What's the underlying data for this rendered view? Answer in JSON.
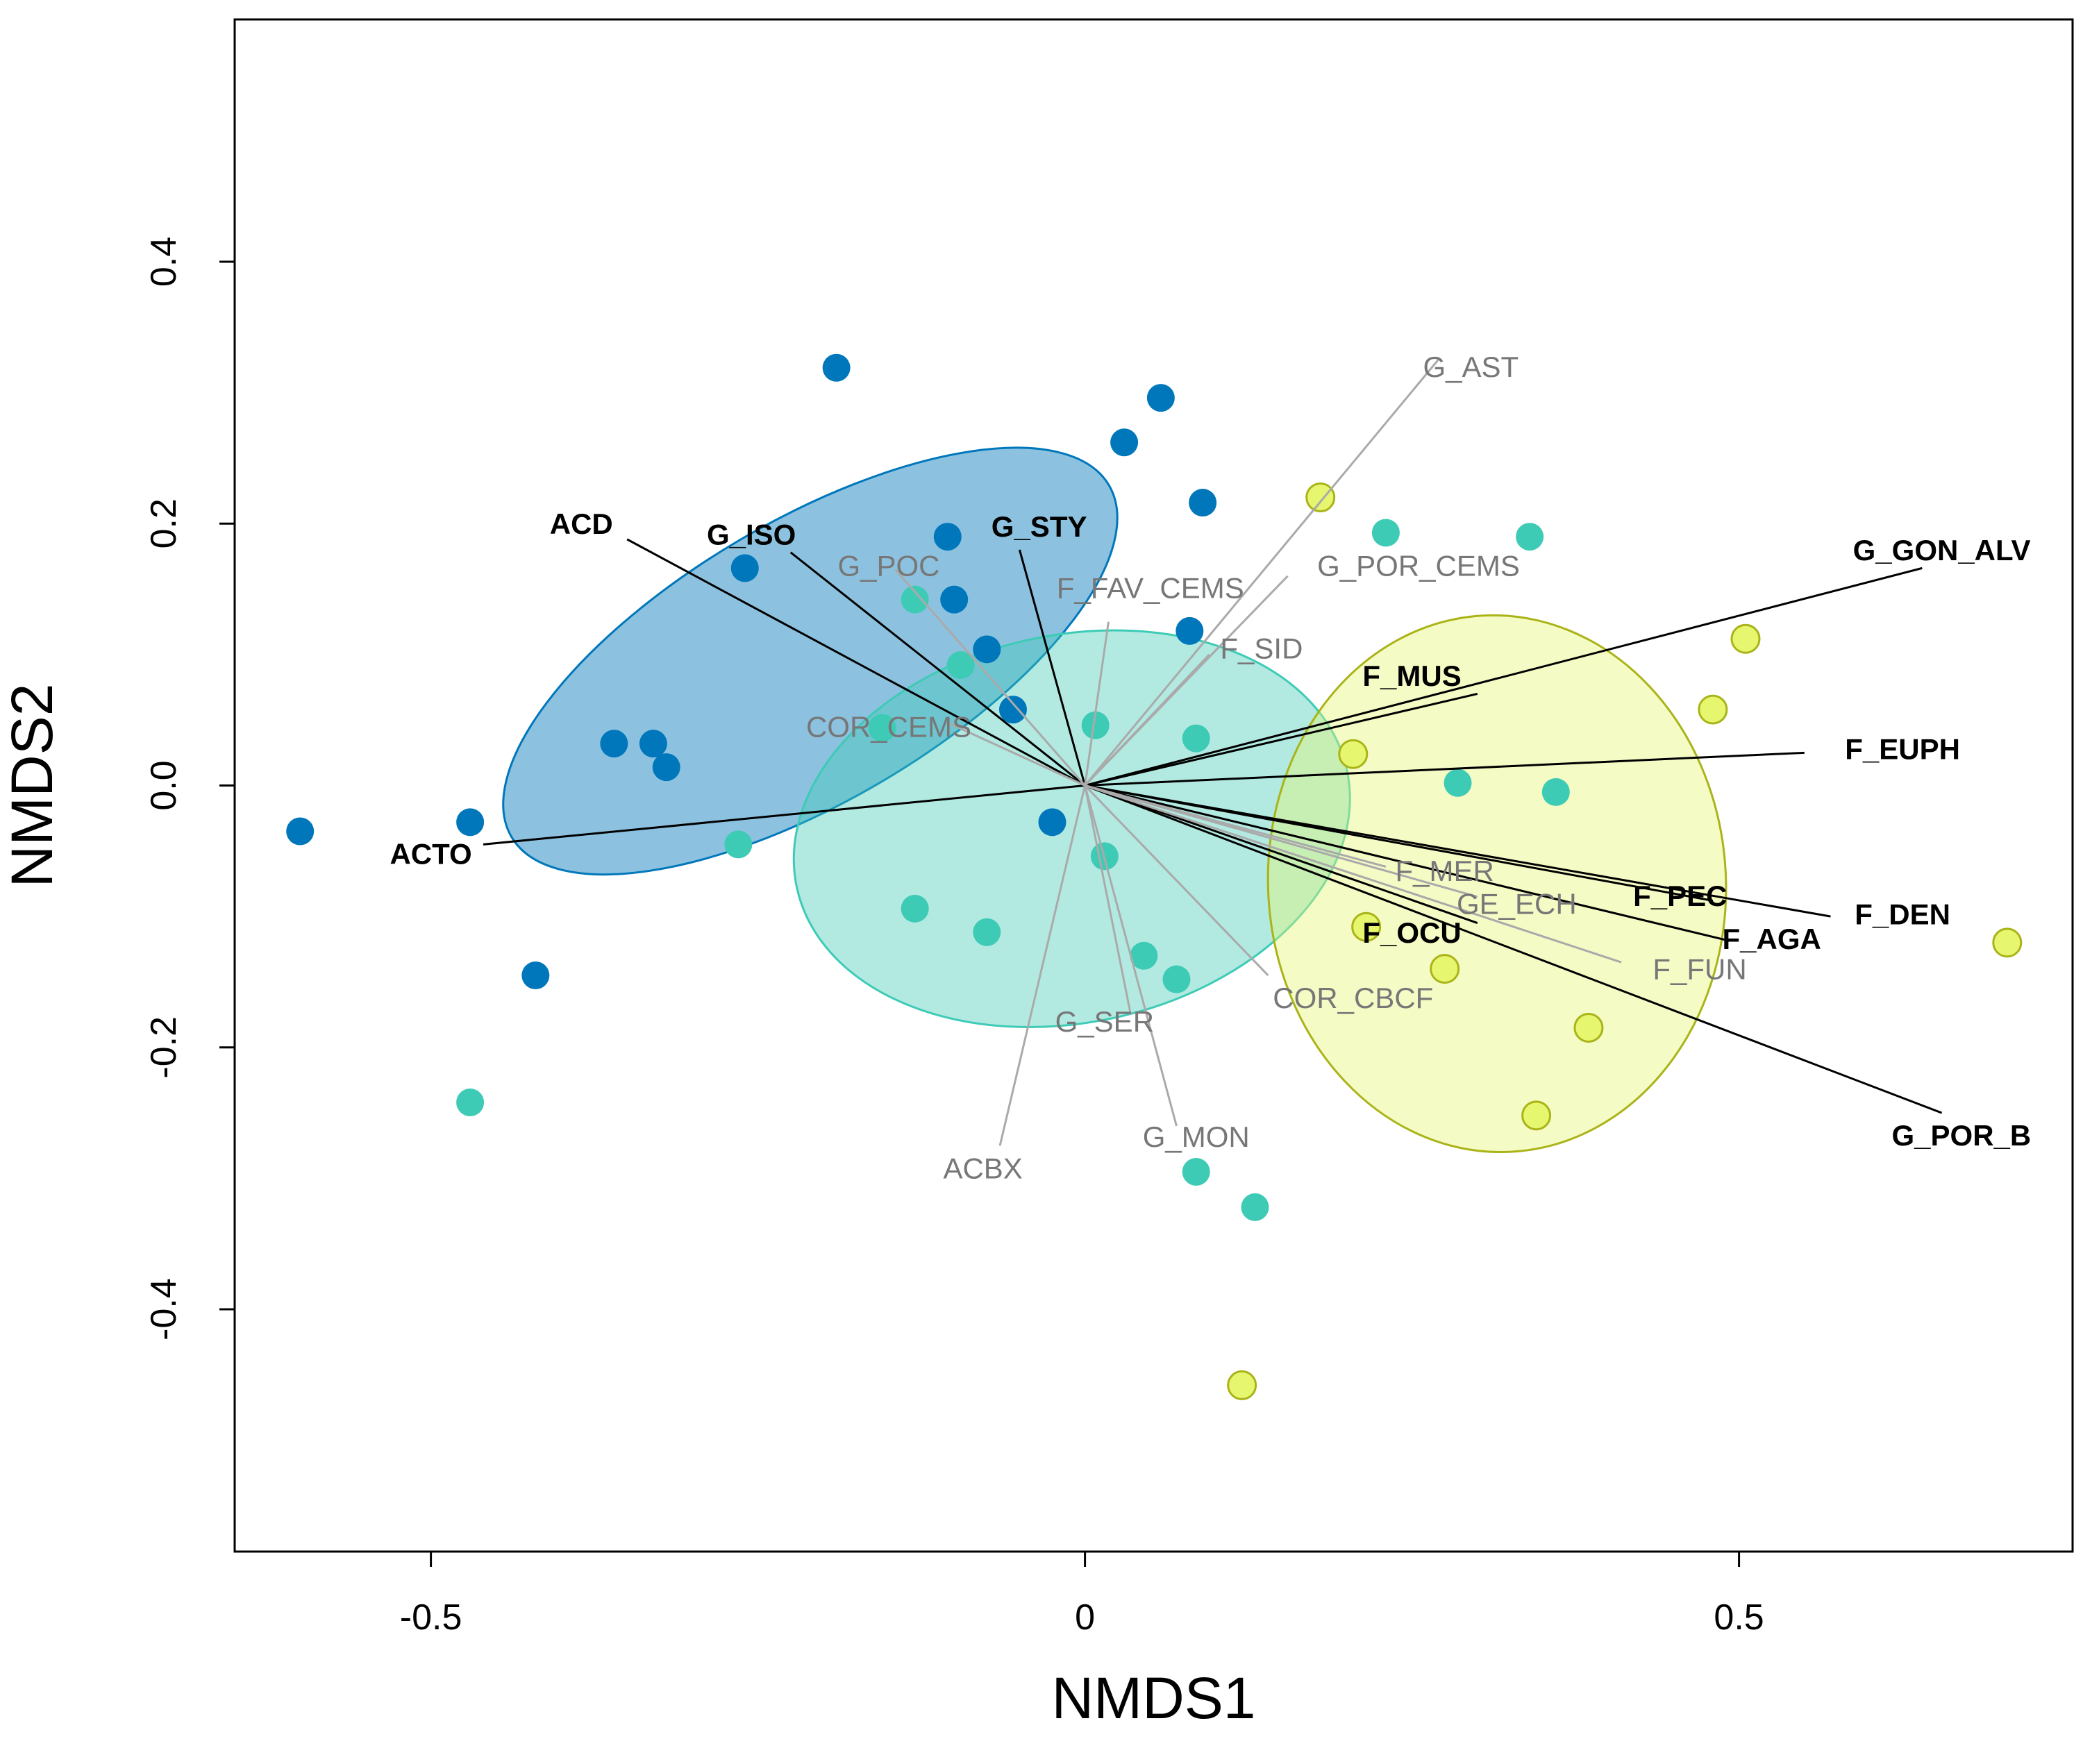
{
  "chart_data": {
    "type": "scatter",
    "title": "",
    "xlabel": "NMDS1",
    "ylabel": "NMDS2",
    "xlim": [
      -0.65,
      0.755
    ],
    "ylim": [
      -0.585,
      0.585
    ],
    "xticks": [
      -0.5,
      0,
      0.5
    ],
    "xtick_labels": [
      "-0.5",
      "0",
      "0.5"
    ],
    "yticks": [
      -0.4,
      -0.2,
      0.0,
      0.2,
      0.4
    ],
    "ytick_labels": [
      "-0.4",
      "-0.2",
      "0.0",
      "0.2",
      "0.4"
    ],
    "colors": {
      "group1": "#0077bb",
      "group2": "#3ecbb6",
      "group3": "#e6f66e",
      "group3_stroke": "#aab418",
      "sig_vector": "#000000",
      "ns_vector": "#aaaaaa"
    },
    "ellipses": [
      {
        "group": "group1",
        "center": [
          -0.21,
          0.095
        ],
        "rx": 0.265,
        "ry": 0.107,
        "angle_deg": 30.5
      },
      {
        "group": "group2",
        "center": [
          -0.01,
          -0.033
        ],
        "rx": 0.215,
        "ry": 0.148,
        "angle_deg": 12
      },
      {
        "group": "group3",
        "center": [
          0.315,
          -0.075
        ],
        "rx": 0.175,
        "ry": 0.205,
        "angle_deg": 3
      }
    ],
    "series": [
      {
        "name": "group1",
        "points": [
          [
            -0.6,
            -0.035
          ],
          [
            -0.47,
            -0.028
          ],
          [
            -0.42,
            -0.145
          ],
          [
            -0.36,
            0.032
          ],
          [
            -0.33,
            0.032
          ],
          [
            -0.32,
            0.014
          ],
          [
            -0.26,
            0.166
          ],
          [
            -0.19,
            0.319
          ],
          [
            -0.105,
            0.19
          ],
          [
            -0.1,
            0.142
          ],
          [
            -0.075,
            0.104
          ],
          [
            -0.055,
            0.058
          ],
          [
            -0.025,
            -0.028
          ],
          [
            0.03,
            0.262
          ],
          [
            0.058,
            0.296
          ],
          [
            0.08,
            0.118
          ],
          [
            0.09,
            0.216
          ]
        ]
      },
      {
        "name": "group2",
        "points": [
          [
            -0.47,
            -0.242
          ],
          [
            -0.265,
            -0.045
          ],
          [
            -0.155,
            0.044
          ],
          [
            -0.13,
            0.142
          ],
          [
            -0.13,
            -0.094
          ],
          [
            -0.095,
            0.092
          ],
          [
            -0.075,
            -0.112
          ],
          [
            0.008,
            0.046
          ],
          [
            0.015,
            -0.054
          ],
          [
            0.045,
            -0.13
          ],
          [
            0.07,
            -0.148
          ],
          [
            0.085,
            0.036
          ],
          [
            0.085,
            -0.295
          ],
          [
            0.13,
            -0.322
          ],
          [
            0.23,
            0.193
          ],
          [
            0.285,
            0.002
          ],
          [
            0.34,
            0.19
          ],
          [
            0.36,
            -0.005
          ]
        ]
      },
      {
        "name": "group3",
        "points": [
          [
            0.12,
            -0.458
          ],
          [
            0.18,
            0.22
          ],
          [
            0.205,
            0.024
          ],
          [
            0.215,
            -0.108
          ],
          [
            0.275,
            -0.14
          ],
          [
            0.345,
            -0.252
          ],
          [
            0.385,
            -0.185
          ],
          [
            0.48,
            0.058
          ],
          [
            0.505,
            0.112
          ],
          [
            0.705,
            -0.12
          ]
        ]
      }
    ],
    "vectors": [
      {
        "label": "ACD",
        "significant": true,
        "end": [
          -0.35,
          0.188
        ],
        "label_pos": [
          -0.385,
          0.2
        ]
      },
      {
        "label": "G_ISO",
        "significant": true,
        "end": [
          -0.225,
          0.178
        ],
        "label_pos": [
          -0.255,
          0.192
        ]
      },
      {
        "label": "G_STY",
        "significant": true,
        "end": [
          -0.05,
          0.18
        ],
        "label_pos": [
          -0.035,
          0.198
        ]
      },
      {
        "label": "ACTO",
        "significant": true,
        "end": [
          -0.46,
          -0.045
        ],
        "label_pos": [
          -0.5,
          -0.052
        ]
      },
      {
        "label": "G_GON_ALV",
        "significant": true,
        "end": [
          0.64,
          0.166
        ],
        "label_pos": [
          0.655,
          0.18
        ]
      },
      {
        "label": "F_MUS",
        "significant": true,
        "end": [
          0.3,
          0.07
        ],
        "label_pos": [
          0.25,
          0.084
        ]
      },
      {
        "label": "F_EUPH",
        "significant": true,
        "end": [
          0.55,
          0.025
        ],
        "label_pos": [
          0.625,
          0.028
        ]
      },
      {
        "label": "F_PEC",
        "significant": true,
        "end": [
          0.48,
          -0.088
        ],
        "label_pos": [
          0.455,
          -0.084
        ]
      },
      {
        "label": "F_DEN",
        "significant": true,
        "end": [
          0.57,
          -0.1
        ],
        "label_pos": [
          0.625,
          -0.098
        ]
      },
      {
        "label": "F_AGA",
        "significant": true,
        "end": [
          0.49,
          -0.118
        ],
        "label_pos": [
          0.525,
          -0.117
        ]
      },
      {
        "label": "F_OCU",
        "significant": true,
        "end": [
          0.3,
          -0.105
        ],
        "label_pos": [
          0.25,
          -0.112
        ]
      },
      {
        "label": "G_POR_B",
        "significant": true,
        "end": [
          0.655,
          -0.25
        ],
        "label_pos": [
          0.67,
          -0.267
        ]
      },
      {
        "label": "G_AST",
        "significant": false,
        "end": [
          0.27,
          0.325
        ],
        "label_pos": [
          0.295,
          0.32
        ]
      },
      {
        "label": "G_POR_CEMS",
        "significant": false,
        "end": [
          0.155,
          0.16
        ],
        "label_pos": [
          0.255,
          0.168
        ]
      },
      {
        "label": "F_FAV_CEMS",
        "significant": false,
        "end": [
          0.018,
          0.125
        ],
        "label_pos": [
          0.05,
          0.151
        ]
      },
      {
        "label": "F_SID",
        "significant": false,
        "end": [
          0.095,
          0.1
        ],
        "label_pos": [
          0.135,
          0.105
        ]
      },
      {
        "label": "G_POC",
        "significant": false,
        "end": [
          -0.145,
          0.165
        ],
        "label_pos": [
          -0.15,
          0.168
        ]
      },
      {
        "label": "COR_CEMS",
        "significant": false,
        "end": [
          -0.105,
          0.048
        ],
        "label_pos": [
          -0.15,
          0.045
        ]
      },
      {
        "label": "F_MER",
        "significant": false,
        "end": [
          0.23,
          -0.062
        ],
        "label_pos": [
          0.275,
          -0.065
        ]
      },
      {
        "label": "GE_ECH",
        "significant": false,
        "end": [
          0.3,
          -0.085
        ],
        "label_pos": [
          0.33,
          -0.09
        ]
      },
      {
        "label": "F_FUN",
        "significant": false,
        "end": [
          0.41,
          -0.135
        ],
        "label_pos": [
          0.47,
          -0.14
        ]
      },
      {
        "label": "COR_CBCF",
        "significant": false,
        "end": [
          0.14,
          -0.145
        ],
        "label_pos": [
          0.205,
          -0.162
        ]
      },
      {
        "label": "G_SER",
        "significant": false,
        "end": [
          0.035,
          -0.175
        ],
        "label_pos": [
          0.015,
          -0.18
        ]
      },
      {
        "label": "G_MON",
        "significant": false,
        "end": [
          0.07,
          -0.26
        ],
        "label_pos": [
          0.085,
          -0.268
        ]
      },
      {
        "label": "ACBX",
        "significant": false,
        "end": [
          -0.065,
          -0.275
        ],
        "label_pos": [
          -0.078,
          -0.292
        ]
      }
    ]
  }
}
